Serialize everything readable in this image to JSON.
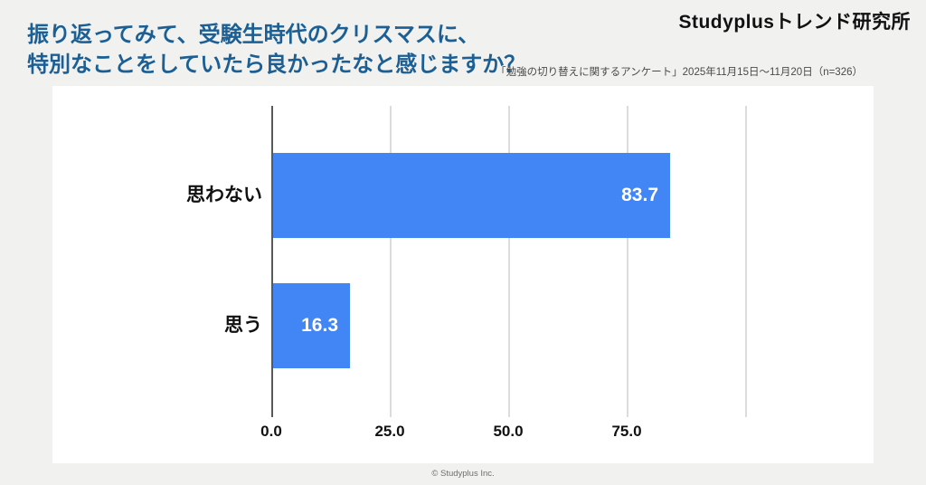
{
  "header": {
    "logo": "Studyplusトレンド研究所",
    "title_line1": "振り返ってみて、受験生時代のクリスマスに、",
    "title_line2": "特別なことをしていたら良かったなと感じますか？",
    "subtitle": "「勉強の切り替えに関するアンケート」2025年11月15日～11月20日（n=326）"
  },
  "chart_data": {
    "type": "bar",
    "orientation": "horizontal",
    "categories": [
      "思わない",
      "思う"
    ],
    "values": [
      83.7,
      16.3
    ],
    "value_labels": [
      "83.7",
      "16.3"
    ],
    "xlim": [
      0,
      100
    ],
    "xtick_values": [
      0,
      25,
      50,
      75
    ],
    "xtick_labels": [
      "0.0",
      "25.0",
      "50.0",
      "75.0"
    ],
    "unlabeled_gridlines": [
      25,
      50,
      75,
      100
    ],
    "grid": true,
    "legend": "none",
    "bar_color": "#4285f4",
    "value_label_color": "#ffffff",
    "title": "振り返ってみて、受験生時代のクリスマスに、特別なことをしていたら良かったなと感じますか？"
  },
  "footer": {
    "copyright": "© Studyplus Inc."
  },
  "colors": {
    "title_blue": "#1b5f94",
    "bar_blue": "#4285f4",
    "background": "#f1f1ef",
    "card": "#ffffff",
    "spine": "#595959",
    "gridline": "#dcdcdc"
  }
}
